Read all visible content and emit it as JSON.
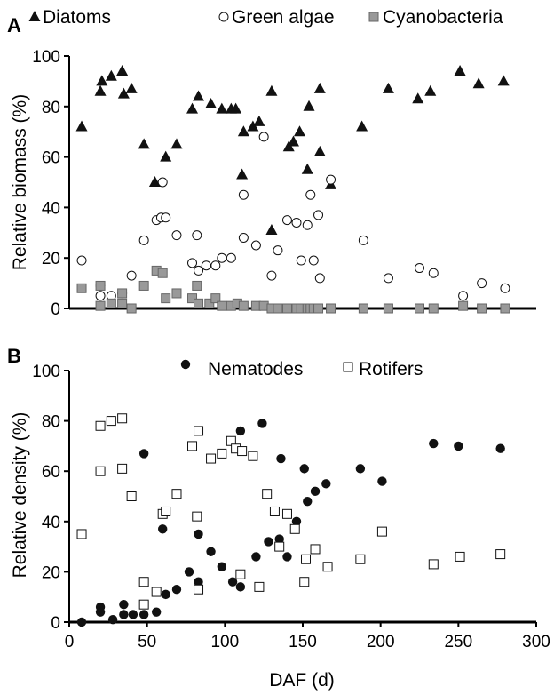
{
  "colors": {
    "axis": "#000000",
    "black": "#111111",
    "gray": "#999999",
    "gray_edge": "#666666",
    "white": "#ffffff"
  },
  "chart_data": [
    {
      "panel_label": "A",
      "type": "scatter",
      "ylabel": "Relative biomass (%)",
      "xlabel": "",
      "xlim": [
        0,
        300
      ],
      "ylim": [
        0,
        100
      ],
      "yticks": [
        "0",
        "20",
        "40",
        "60",
        "80",
        "100"
      ],
      "xticks": [],
      "grid": false,
      "legend_position": "top",
      "series": [
        {
          "name": "Diatoms",
          "marker": "triangle-filled",
          "points": [
            [
              8,
              72
            ],
            [
              20,
              86
            ],
            [
              21,
              90
            ],
            [
              27,
              92
            ],
            [
              34,
              94
            ],
            [
              35,
              85
            ],
            [
              40,
              87
            ],
            [
              48,
              65
            ],
            [
              55,
              50
            ],
            [
              62,
              60
            ],
            [
              69,
              65
            ],
            [
              79,
              79
            ],
            [
              83,
              84
            ],
            [
              91,
              81
            ],
            [
              98,
              79
            ],
            [
              104,
              79
            ],
            [
              107,
              79
            ],
            [
              112,
              70
            ],
            [
              111,
              53
            ],
            [
              118,
              72
            ],
            [
              122,
              74
            ],
            [
              130,
              86
            ],
            [
              141,
              64
            ],
            [
              144,
              66
            ],
            [
              148,
              70
            ],
            [
              153,
              55
            ],
            [
              154,
              80
            ],
            [
              161,
              62
            ],
            [
              161,
              87
            ],
            [
              168,
              49
            ],
            [
              188,
              72
            ],
            [
              205,
              87
            ],
            [
              224,
              83
            ],
            [
              232,
              86
            ],
            [
              251,
              94
            ],
            [
              263,
              89
            ],
            [
              279,
              90
            ],
            [
              130,
              31
            ]
          ]
        },
        {
          "name": "Green algae",
          "marker": "circle-open",
          "points": [
            [
              8,
              19
            ],
            [
              20,
              5
            ],
            [
              20,
              9
            ],
            [
              27,
              5
            ],
            [
              34,
              6
            ],
            [
              40,
              13
            ],
            [
              48,
              27
            ],
            [
              56,
              35
            ],
            [
              59,
              36
            ],
            [
              60,
              50
            ],
            [
              62,
              36
            ],
            [
              69,
              29
            ],
            [
              79,
              18
            ],
            [
              82,
              29
            ],
            [
              83,
              15
            ],
            [
              88,
              17
            ],
            [
              94,
              17
            ],
            [
              98,
              20
            ],
            [
              104,
              20
            ],
            [
              112,
              45
            ],
            [
              112,
              28
            ],
            [
              120,
              25
            ],
            [
              125,
              68
            ],
            [
              130,
              13
            ],
            [
              134,
              23
            ],
            [
              140,
              35
            ],
            [
              146,
              34
            ],
            [
              149,
              19
            ],
            [
              153,
              33
            ],
            [
              155,
              45
            ],
            [
              157,
              19
            ],
            [
              160,
              37
            ],
            [
              161,
              12
            ],
            [
              168,
              51
            ],
            [
              189,
              27
            ],
            [
              205,
              12
            ],
            [
              225,
              16
            ],
            [
              234,
              14
            ],
            [
              253,
              5
            ],
            [
              265,
              10
            ],
            [
              280,
              8
            ]
          ]
        },
        {
          "name": "Cyanobacteria",
          "marker": "square-filled",
          "points": [
            [
              8,
              8
            ],
            [
              20,
              1
            ],
            [
              20,
              9
            ],
            [
              27,
              2
            ],
            [
              34,
              2
            ],
            [
              34,
              6
            ],
            [
              40,
              0
            ],
            [
              48,
              9
            ],
            [
              56,
              15
            ],
            [
              60,
              14
            ],
            [
              62,
              4
            ],
            [
              69,
              6
            ],
            [
              79,
              4
            ],
            [
              82,
              9
            ],
            [
              83,
              2
            ],
            [
              90,
              2
            ],
            [
              94,
              4
            ],
            [
              98,
              1
            ],
            [
              104,
              1
            ],
            [
              108,
              2
            ],
            [
              112,
              1
            ],
            [
              120,
              1
            ],
            [
              125,
              1
            ],
            [
              130,
              0
            ],
            [
              134,
              0
            ],
            [
              140,
              0
            ],
            [
              146,
              0
            ],
            [
              149,
              0
            ],
            [
              153,
              0
            ],
            [
              155,
              0
            ],
            [
              157,
              0
            ],
            [
              160,
              0
            ],
            [
              168,
              0
            ],
            [
              189,
              0
            ],
            [
              205,
              0
            ],
            [
              225,
              0
            ],
            [
              234,
              0
            ],
            [
              253,
              1
            ],
            [
              265,
              0
            ],
            [
              280,
              0
            ]
          ]
        }
      ]
    },
    {
      "panel_label": "B",
      "type": "scatter",
      "ylabel": "Relative density (%)",
      "xlabel": "DAF (d)",
      "xlim": [
        0,
        300
      ],
      "ylim": [
        0,
        100
      ],
      "yticks": [
        "0",
        "20",
        "40",
        "60",
        "80",
        "100"
      ],
      "xticks": [
        "0",
        "50",
        "100",
        "150",
        "200",
        "250",
        "300"
      ],
      "grid": false,
      "legend_position": "top",
      "series": [
        {
          "name": "Nematodes",
          "marker": "circle-filled",
          "points": [
            [
              8,
              0
            ],
            [
              20,
              4
            ],
            [
              20,
              6
            ],
            [
              28,
              1
            ],
            [
              35,
              3
            ],
            [
              35,
              7
            ],
            [
              41,
              3
            ],
            [
              48,
              3
            ],
            [
              48,
              67
            ],
            [
              56,
              4
            ],
            [
              60,
              37
            ],
            [
              62,
              11
            ],
            [
              69,
              13
            ],
            [
              77,
              20
            ],
            [
              83,
              16
            ],
            [
              83,
              35
            ],
            [
              91,
              28
            ],
            [
              98,
              22
            ],
            [
              105,
              16
            ],
            [
              110,
              76
            ],
            [
              110,
              14
            ],
            [
              120,
              26
            ],
            [
              124,
              79
            ],
            [
              128,
              32
            ],
            [
              135,
              33
            ],
            [
              136,
              65
            ],
            [
              140,
              26
            ],
            [
              146,
              40
            ],
            [
              151,
              61
            ],
            [
              153,
              48
            ],
            [
              158,
              52
            ],
            [
              165,
              55
            ],
            [
              187,
              61
            ],
            [
              201,
              56
            ],
            [
              234,
              71
            ],
            [
              250,
              70
            ],
            [
              277,
              69
            ]
          ]
        },
        {
          "name": "Rotifers",
          "marker": "square-open",
          "points": [
            [
              8,
              35
            ],
            [
              20,
              78
            ],
            [
              20,
              60
            ],
            [
              27,
              80
            ],
            [
              34,
              81
            ],
            [
              34,
              61
            ],
            [
              40,
              50
            ],
            [
              48,
              16
            ],
            [
              48,
              7
            ],
            [
              56,
              12
            ],
            [
              60,
              43
            ],
            [
              62,
              44
            ],
            [
              69,
              51
            ],
            [
              79,
              70
            ],
            [
              82,
              42
            ],
            [
              83,
              76
            ],
            [
              83,
              13
            ],
            [
              91,
              65
            ],
            [
              98,
              67
            ],
            [
              104,
              72
            ],
            [
              107,
              69
            ],
            [
              110,
              19
            ],
            [
              111,
              68
            ],
            [
              118,
              66
            ],
            [
              122,
              14
            ],
            [
              127,
              51
            ],
            [
              132,
              44
            ],
            [
              135,
              30
            ],
            [
              140,
              43
            ],
            [
              145,
              37
            ],
            [
              151,
              16
            ],
            [
              152,
              25
            ],
            [
              158,
              29
            ],
            [
              166,
              22
            ],
            [
              187,
              25
            ],
            [
              201,
              36
            ],
            [
              234,
              23
            ],
            [
              251,
              26
            ],
            [
              277,
              27
            ]
          ]
        }
      ]
    }
  ]
}
